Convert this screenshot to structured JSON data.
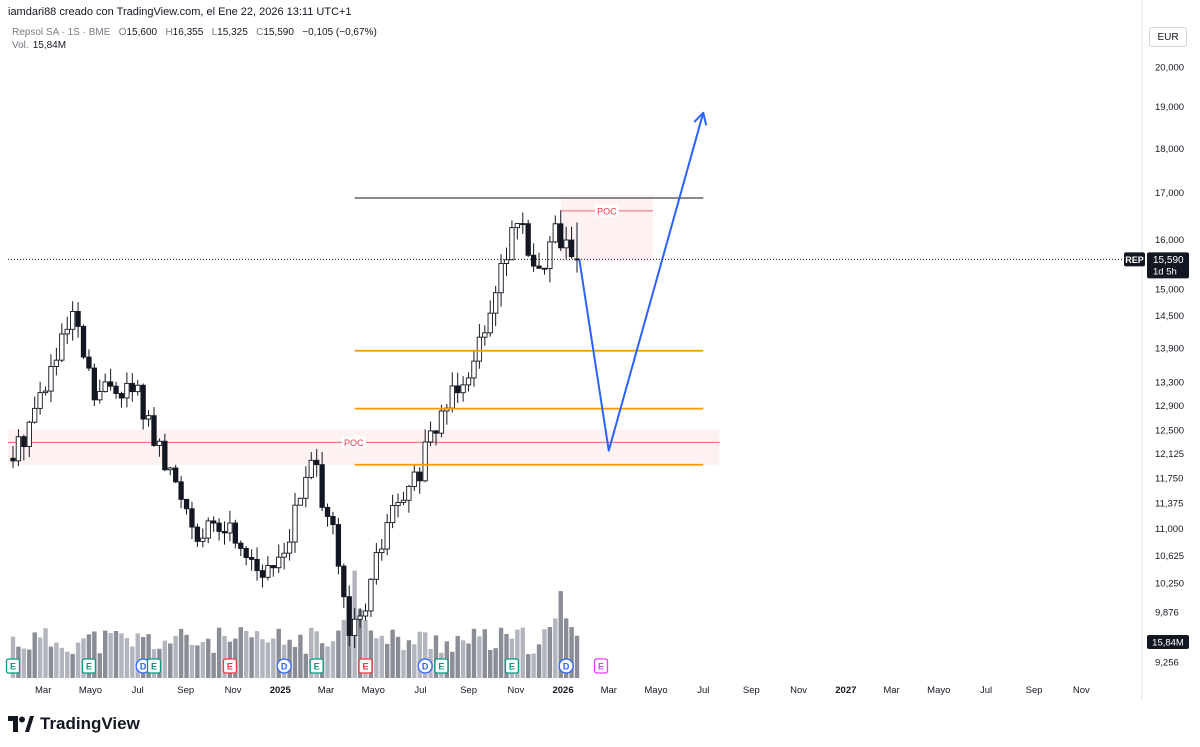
{
  "header": {
    "attribution": "iamdari88 creado con TradingView.com, el Ene 22, 2026 13:11 UTC+1"
  },
  "legend": {
    "symbol": "Repsol SA · 1S · BME",
    "open_label": "O",
    "open": "15,600",
    "high_label": "H",
    "high": "16,355",
    "low_label": "L",
    "low": "15,325",
    "close_label": "C",
    "close": "15,590",
    "change": "−0,105 (−0,67%)",
    "volume_label": "Vol.",
    "volume": "15,84M"
  },
  "currency": "EUR",
  "footer": {
    "brand": "TradingView"
  },
  "colors": {
    "up": "#ffffff",
    "down": "#131722",
    "poc": "#f23645",
    "level": "#ff9800",
    "arrow": "#2962ff",
    "resistance": "#434651",
    "volume": "#9598a1"
  },
  "chart_data": {
    "type": "candlestick",
    "y_scale": "log",
    "ylim": [
      9.1,
      20.6
    ],
    "y_ticks": [
      {
        "v": 20.0,
        "label": "20,000"
      },
      {
        "v": 19.0,
        "label": "19,000"
      },
      {
        "v": 18.0,
        "label": "18,000"
      },
      {
        "v": 17.0,
        "label": "17,000"
      },
      {
        "v": 16.0,
        "label": "16,000"
      },
      {
        "v": 15.0,
        "label": "15,000"
      },
      {
        "v": 14.5,
        "label": "14,500"
      },
      {
        "v": 13.9,
        "label": "13,900"
      },
      {
        "v": 13.3,
        "label": "13,300"
      },
      {
        "v": 12.9,
        "label": "12,900"
      },
      {
        "v": 12.5,
        "label": "12,500"
      },
      {
        "v": 12.125,
        "label": "12,125"
      },
      {
        "v": 11.75,
        "label": "11,750"
      },
      {
        "v": 11.375,
        "label": "11,375"
      },
      {
        "v": 11.0,
        "label": "11,000"
      },
      {
        "v": 10.625,
        "label": "10,625"
      },
      {
        "v": 10.25,
        "label": "10,250"
      },
      {
        "v": 9.876,
        "label": "9,876"
      },
      {
        "v": 9.256,
        "label": "9,256"
      }
    ],
    "x_ticks": [
      {
        "date": "2024-03-01",
        "label": "Mar"
      },
      {
        "date": "2024-05-01",
        "label": "Mayo"
      },
      {
        "date": "2024-07-01",
        "label": "Jul"
      },
      {
        "date": "2024-09-01",
        "label": "Sep"
      },
      {
        "date": "2024-11-01",
        "label": "Nov"
      },
      {
        "date": "2025-01-01",
        "label": "2025"
      },
      {
        "date": "2025-03-01",
        "label": "Mar"
      },
      {
        "date": "2025-05-01",
        "label": "Mayo"
      },
      {
        "date": "2025-07-01",
        "label": "Jul"
      },
      {
        "date": "2025-09-01",
        "label": "Sep"
      },
      {
        "date": "2025-11-01",
        "label": "Nov"
      },
      {
        "date": "2026-01-01",
        "label": "2026"
      },
      {
        "date": "2026-03-01",
        "label": "Mar"
      },
      {
        "date": "2026-05-01",
        "label": "Mayo"
      },
      {
        "date": "2026-07-01",
        "label": "Jul"
      },
      {
        "date": "2026-09-01",
        "label": "Sep"
      },
      {
        "date": "2026-11-01",
        "label": "Nov"
      },
      {
        "date": "2027-01-01",
        "label": "2027"
      },
      {
        "date": "2027-03-01",
        "label": "Mar"
      },
      {
        "date": "2027-05-01",
        "label": "Mayo"
      },
      {
        "date": "2027-07-01",
        "label": "Jul"
      },
      {
        "date": "2027-09-01",
        "label": "Sep"
      },
      {
        "date": "2027-11-01",
        "label": "Nov"
      }
    ],
    "candle_anchors": [
      {
        "date": "2024-01-22",
        "close": 12.05
      },
      {
        "date": "2024-02-19",
        "close": 12.85
      },
      {
        "date": "2024-03-18",
        "close": 13.7
      },
      {
        "date": "2024-04-08",
        "close": 14.45
      },
      {
        "date": "2024-05-06",
        "close": 13.05
      },
      {
        "date": "2024-06-03",
        "close": 13.25
      },
      {
        "date": "2024-07-01",
        "close": 13.1
      },
      {
        "date": "2024-07-29",
        "close": 12.1
      },
      {
        "date": "2024-08-26",
        "close": 11.5
      },
      {
        "date": "2024-09-23",
        "close": 10.85
      },
      {
        "date": "2024-10-21",
        "close": 11.05
      },
      {
        "date": "2024-11-18",
        "close": 10.75
      },
      {
        "date": "2024-12-16",
        "close": 10.3
      },
      {
        "date": "2025-01-13",
        "close": 10.95
      },
      {
        "date": "2025-02-10",
        "close": 11.95
      },
      {
        "date": "2025-03-03",
        "close": 11.3
      },
      {
        "date": "2025-03-31",
        "close": 9.5
      },
      {
        "date": "2025-04-21",
        "close": 9.95
      },
      {
        "date": "2025-05-19",
        "close": 11.1
      },
      {
        "date": "2025-06-16",
        "close": 11.5
      },
      {
        "date": "2025-07-14",
        "close": 12.3
      },
      {
        "date": "2025-08-11",
        "close": 13.2
      },
      {
        "date": "2025-09-08",
        "close": 13.7
      },
      {
        "date": "2025-10-06",
        "close": 15.1
      },
      {
        "date": "2025-11-03",
        "close": 16.4
      },
      {
        "date": "2025-12-01",
        "close": 15.3
      },
      {
        "date": "2025-12-22",
        "close": 16.2
      },
      {
        "date": "2026-01-19",
        "close": 15.59
      }
    ],
    "last_candle": {
      "date": "2026-01-19",
      "open": 15.6,
      "high": 16.355,
      "low": 15.325,
      "close": 15.59
    },
    "last_price_label": {
      "symbol": "REP",
      "price": "15,590",
      "countdown": "1d 5h"
    },
    "volume_label": "15,84M",
    "volume_scale_max_millions": 45,
    "volume_peaks_millions": [
      {
        "date": "2025-04-07",
        "value": 42
      },
      {
        "date": "2025-12-29",
        "value": 34
      }
    ],
    "poc_zones": [
      {
        "label": "POC",
        "price": 12.3,
        "zone": [
          11.95,
          12.5
        ],
        "from": "2024-01-01",
        "to": "2026-07-22"
      },
      {
        "label": "POC",
        "price": 16.6,
        "zone": [
          15.55,
          16.95
        ],
        "from": "2025-12-29",
        "to": "2026-04-27"
      }
    ],
    "horizontal_lines": [
      {
        "price": 16.88,
        "from": "2025-04-07",
        "to": "2026-07-01",
        "kind": "resistance"
      },
      {
        "price": 13.85,
        "from": "2025-04-07",
        "to": "2026-07-01",
        "kind": "level"
      },
      {
        "price": 12.85,
        "from": "2025-04-07",
        "to": "2026-07-01",
        "kind": "level"
      },
      {
        "price": 11.95,
        "from": "2025-04-07",
        "to": "2026-07-01",
        "kind": "level"
      }
    ],
    "projection": [
      {
        "date": "2026-01-22",
        "price": 15.59
      },
      {
        "date": "2026-03-01",
        "price": 12.17
      },
      {
        "date": "2026-07-01",
        "price": 18.85
      }
    ],
    "event_markers": [
      {
        "date": "2024-01-22",
        "label": "E",
        "kind": "earnings"
      },
      {
        "date": "2024-04-29",
        "label": "E",
        "kind": "earnings"
      },
      {
        "date": "2024-07-08",
        "label": "D",
        "kind": "dividend"
      },
      {
        "date": "2024-07-22",
        "label": "E",
        "kind": "earnings"
      },
      {
        "date": "2024-10-28",
        "label": "E",
        "kind": "earnings-future"
      },
      {
        "date": "2025-01-06",
        "label": "D",
        "kind": "dividend"
      },
      {
        "date": "2025-02-17",
        "label": "E",
        "kind": "earnings"
      },
      {
        "date": "2025-04-21",
        "label": "E",
        "kind": "earnings-future"
      },
      {
        "date": "2025-07-07",
        "label": "D",
        "kind": "dividend"
      },
      {
        "date": "2025-07-28",
        "label": "E",
        "kind": "earnings"
      },
      {
        "date": "2025-10-27",
        "label": "E",
        "kind": "earnings"
      },
      {
        "date": "2026-01-05",
        "label": "D",
        "kind": "dividend"
      },
      {
        "date": "2026-02-19",
        "label": "E",
        "kind": "earnings-future"
      }
    ]
  }
}
